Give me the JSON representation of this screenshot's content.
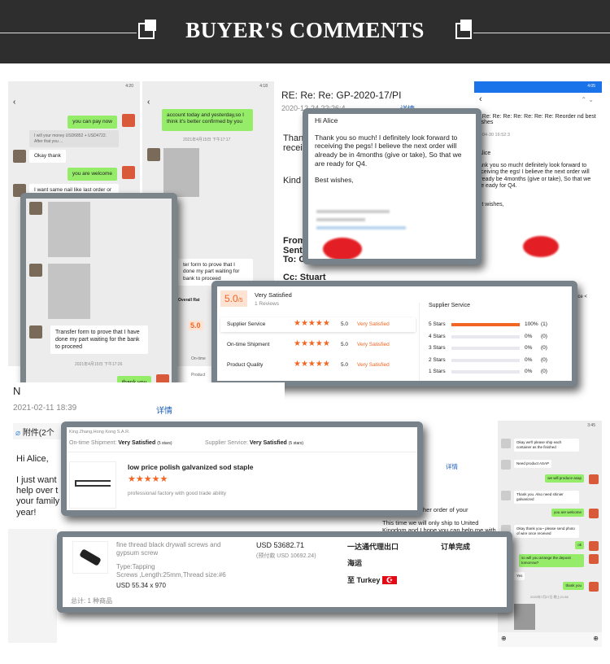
{
  "header": {
    "title": "BUYER'S COMMENTS"
  },
  "chat1": {
    "status_time": "4:20",
    "messages": [
      "you can pay now",
      "I will your money USD6852 + USD4722. After that you ...",
      "Okay thank",
      "you are welcome",
      "I want same nail like last order or"
    ]
  },
  "chat2": {
    "status_time": "4:18",
    "messages": [
      "account today and yesterday,so I think it's better confirmed by you"
    ],
    "timestamp": "2021年4月15日 下午17:17",
    "partial": [
      "ter form to prove that I",
      "done my part waiting for",
      "bank to proceed"
    ],
    "overall": "Overall Rat",
    "rating": "5.0",
    "side_labels": [
      "On-time",
      "Product"
    ]
  },
  "chat_overlay": {
    "message": "Transfer form to prove that I have done my part waiting for the bank to proceed",
    "timestamp": "2021年4月15日 下午17:26",
    "reply": "thank you"
  },
  "email1": {
    "subject": "RE: Re: Re: GP-2020-17/PI",
    "date": "2020-12-24 22:26:4",
    "details": "详情",
    "partial": [
      "Thank",
      "receiv",
      "Kind",
      "From",
      "Sent:",
      "To: C",
      "Cc: Stuart"
    ]
  },
  "email_overlay": {
    "greeting": "Hi Alice",
    "body": "Thank you so much! I definitely look forward to receiving the pegs! I believe the next order will already be in 4months (give or take), So that we are ready for Q4.",
    "closing": "Best wishes,"
  },
  "email_phone": {
    "status_time": "4:05",
    "subject": "e: Re: Re: Re: Re: Re: Re: Re: Reorder nd best wishes",
    "date": "21-04-30 16:52:3",
    "details": "详情",
    "greeting": "i Alice",
    "body": "hank you so much! definitely look forward to receiving the egs! I believe the next order will already be 4months (give or take), So that we are eady for Q4.",
    "closing": "est wishes,",
    "side": "ice <"
  },
  "rating": {
    "score": "5.0",
    "score_unit": "/5",
    "summary": "Very Satisfied",
    "reviews": "1 Reviews",
    "rows": [
      {
        "label": "Supplier Service",
        "score": "5.0",
        "text": "Very Satisfied",
        "stars": 5
      },
      {
        "label": "On-time Shipment",
        "score": "5.0",
        "text": "Very Satisfied",
        "stars": 5
      },
      {
        "label": "Product Quality",
        "score": "5.0",
        "text": "Very Satisfied",
        "stars": 5
      }
    ],
    "dist_title": "Supplier Service",
    "dist": [
      {
        "label": "5 Stars",
        "pct": "100%",
        "count": "(1)",
        "value": 100
      },
      {
        "label": "4 Stars",
        "pct": "0%",
        "count": "(0)",
        "value": 0
      },
      {
        "label": "3 Stars",
        "pct": "0%",
        "count": "(0)",
        "value": 0
      },
      {
        "label": "2 Stars",
        "pct": "0%",
        "count": "(0)",
        "value": 0
      },
      {
        "label": "1 Stars",
        "pct": "0%",
        "count": "(0)",
        "value": 0
      }
    ]
  },
  "email2": {
    "subject": "N",
    "date": "2021-02-11 18:39",
    "details": "详情",
    "attachment": "附件(2个",
    "greeting": "Hi Alice,",
    "lines": [
      "I just want",
      "help over t",
      "your family",
      "year!"
    ]
  },
  "review": {
    "buyer": "King Zhang,Hong Kong S.A.R.",
    "shipment_label": "On-time Shipment:",
    "shipment_value": "Very Satisfied",
    "shipment_stars": "(5 stars)",
    "service_label": "Supplier Service:",
    "service_value": "Very Satisfied",
    "service_stars": "(5 stars)",
    "product": "low price polish galvanized sod staple",
    "stars": 5,
    "comment": "professional factory with good trade ability"
  },
  "email3": {
    "lines": [
      "her order of your",
      "This time we will only ship to United",
      "Kingdom and I hope you can help me with"
    ],
    "details": "详情"
  },
  "order": {
    "product": "fine thread black drywall screws and gypsum screw",
    "type": "Type:Tapping",
    "spec": "Screws ,Length:25mm,Thread size:#6",
    "price": "USD 55.34 x 970",
    "total": "USD 53682.71",
    "prepaid": "(预付款 USD 10692.24)",
    "forwarder": "一达通代理出口",
    "shipping": "海运",
    "destination_prefix": "至",
    "destination": "Turkey",
    "status": "订单完成",
    "summary": "总计: 1 种商品"
  },
  "chat3": {
    "status_time": "3:45",
    "messages": [
      "Okay we'll please ship each container as the finished",
      "Need product ASAP",
      "we will produce asap",
      "Thank you. Also need shinier galvanized",
      "you are welcome",
      "Okay thank you~ please send photo of wire once received",
      "ok",
      "so will you arrange the deposit tomorrow?",
      "Yes",
      "thank you"
    ],
    "timestamp": "2020年7月27日 晚上21:58"
  },
  "colors": {
    "accent": "#f26522",
    "chat_green": "#95ec69",
    "frame": "#77828a",
    "header": "#2e2e2e"
  }
}
